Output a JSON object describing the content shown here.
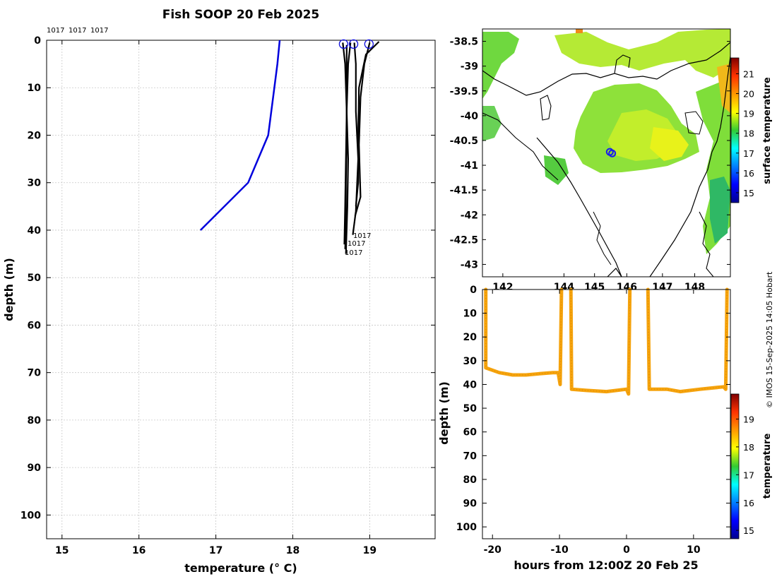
{
  "title": "Fish SOOP 20 Feb 2025",
  "credit": "© IMOS 15-Sep-2025 14:05 Hobart",
  "chart_data": [
    {
      "type": "line",
      "name": "temperature-depth profiles",
      "xlabel": "temperature (° C)",
      "ylabel": "depth (m)",
      "xlim": [
        14.8,
        19.85
      ],
      "ylim": [
        0,
        105
      ],
      "xticks": [
        "15",
        "16",
        "17",
        "18",
        "19"
      ],
      "yticks": [
        "0",
        "10",
        "20",
        "30",
        "40",
        "50",
        "60",
        "70",
        "80",
        "90",
        "100"
      ],
      "grid": true,
      "top_labels": [
        "1017",
        "1017",
        "1017"
      ],
      "cast_labels": [
        "1017",
        "1017",
        "1017"
      ],
      "series": [
        {
          "name": "surface temperature profile",
          "color": "#0000dd",
          "points": [
            [
              17.83,
              0
            ],
            [
              17.8,
              5
            ],
            [
              17.76,
              10
            ],
            [
              17.68,
              20
            ],
            [
              17.42,
              30
            ],
            [
              16.8,
              40
            ]
          ]
        },
        {
          "name": "cast 1",
          "color": "#000000",
          "points": [
            [
              18.65,
              0.5
            ],
            [
              18.68,
              5
            ],
            [
              18.7,
              15
            ],
            [
              18.69,
              25
            ],
            [
              18.68,
              35
            ],
            [
              18.67,
              43
            ]
          ]
        },
        {
          "name": "cast 2",
          "color": "#000000",
          "points": [
            [
              18.75,
              0.5
            ],
            [
              18.72,
              5
            ],
            [
              18.7,
              15
            ],
            [
              18.72,
              25
            ],
            [
              18.71,
              35
            ],
            [
              18.69,
              45
            ]
          ]
        },
        {
          "name": "cast 3",
          "color": "#000000",
          "points": [
            [
              18.8,
              0.5
            ],
            [
              18.82,
              5
            ],
            [
              18.82,
              15
            ],
            [
              18.85,
              25
            ],
            [
              18.82,
              36
            ],
            [
              18.78,
              41
            ]
          ]
        },
        {
          "name": "cast 4",
          "color": "#000000",
          "points": [
            [
              19.0,
              0.5
            ],
            [
              18.93,
              5
            ],
            [
              18.88,
              12
            ],
            [
              18.86,
              22
            ],
            [
              18.88,
              33
            ],
            [
              18.81,
              37
            ]
          ]
        },
        {
          "name": "cast 5",
          "color": "#000000",
          "points": [
            [
              19.12,
              0.3
            ],
            [
              18.95,
              3
            ],
            [
              18.86,
              10
            ],
            [
              18.85,
              20
            ],
            [
              18.85,
              30
            ],
            [
              18.82,
              35
            ]
          ]
        },
        {
          "name": "cast 6",
          "color": "#000000",
          "points": [
            [
              18.7,
              1
            ],
            [
              18.7,
              10
            ],
            [
              18.7,
              20
            ],
            [
              18.69,
              30
            ],
            [
              18.69,
              40
            ],
            [
              18.68,
              44
            ]
          ]
        }
      ],
      "markers": [
        {
          "name": "cast start circle",
          "x": 18.66,
          "y": 0.8
        },
        {
          "name": "cast start circle",
          "x": 18.79,
          "y": 0.8
        },
        {
          "name": "cast start circle",
          "x": 18.99,
          "y": 0.8
        }
      ]
    },
    {
      "type": "heatmap",
      "name": "surface temperature map",
      "xlabel": "",
      "ylabel": "",
      "xlim": [
        141.7,
        149.0
      ],
      "ylim": [
        -43.25,
        -38.25
      ],
      "xticks": [
        "142",
        "144",
        "145",
        "146",
        "147",
        "148"
      ],
      "yticks": [
        "-38.5",
        "-39",
        "-39.5",
        "-40",
        "-40.5",
        "-41",
        "-41.5",
        "-42",
        "-42.5",
        "-43"
      ],
      "colorbar": {
        "label": "surface temperature",
        "range": [
          14.5,
          21.8
        ],
        "ticks": [
          "15",
          "16",
          "17",
          "18",
          "19",
          "20",
          "21"
        ]
      },
      "ship_positions": [
        {
          "lon": 145.45,
          "lat": -40.73
        },
        {
          "lon": 145.52,
          "lat": -40.76
        }
      ]
    },
    {
      "type": "scatter",
      "name": "depth time series",
      "xlabel": "hours from 12:00Z 20 Feb 25",
      "ylabel": "depth (m)",
      "xlim": [
        -21.5,
        15.5
      ],
      "ylim": [
        0,
        105
      ],
      "xticks": [
        "-20",
        "-10",
        "0",
        "10"
      ],
      "yticks": [
        "0",
        "10",
        "20",
        "30",
        "40",
        "50",
        "60",
        "70",
        "80",
        "90",
        "100"
      ],
      "color": "#f5a30d",
      "colorbar": {
        "label": "temperature",
        "range": [
          14.7,
          19.9
        ],
        "ticks": [
          "15",
          "16",
          "17",
          "18",
          "19"
        ]
      },
      "segments": [
        [
          [
            -21,
            0
          ],
          [
            -21,
            33
          ],
          [
            -20,
            34
          ],
          [
            -19,
            35
          ],
          [
            -17,
            36
          ],
          [
            -15,
            36
          ],
          [
            -13,
            35.5
          ],
          [
            -11,
            35
          ],
          [
            -10.2,
            35
          ],
          [
            -9.9,
            40
          ],
          [
            -9.7,
            0
          ]
        ],
        [
          [
            -8.3,
            0
          ],
          [
            -8.2,
            42
          ],
          [
            -6,
            42.5
          ],
          [
            -3,
            43
          ],
          [
            0,
            42
          ],
          [
            0.3,
            44
          ],
          [
            0.5,
            0
          ]
        ],
        [
          [
            3.2,
            0
          ],
          [
            3.4,
            42
          ],
          [
            6,
            42
          ],
          [
            8,
            43
          ],
          [
            11,
            42
          ],
          [
            14.5,
            41
          ],
          [
            14.8,
            42
          ],
          [
            15,
            0
          ]
        ]
      ]
    }
  ]
}
